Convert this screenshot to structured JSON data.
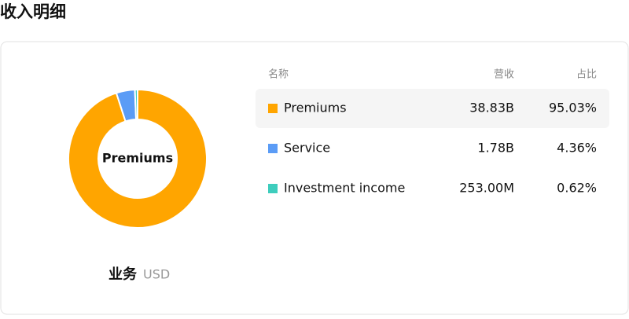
{
  "header": {
    "title": "收入明细"
  },
  "chart_data": {
    "type": "pie",
    "categories": [
      "Premiums",
      "Service",
      "Investment income"
    ],
    "values": [
      95.03,
      4.36,
      0.62
    ],
    "value_labels": [
      "95.03%",
      "4.36%",
      "0.62%"
    ],
    "colors": [
      "#ffa500",
      "#5b9cf6",
      "#3ecdbd"
    ],
    "donut": true
  },
  "footer": {
    "label": "业务",
    "unit": "USD"
  },
  "table": {
    "columns": [
      "名称",
      "营收",
      "占比"
    ],
    "revenue": [
      "38.83B",
      "1.78B",
      "253.00M"
    ]
  }
}
